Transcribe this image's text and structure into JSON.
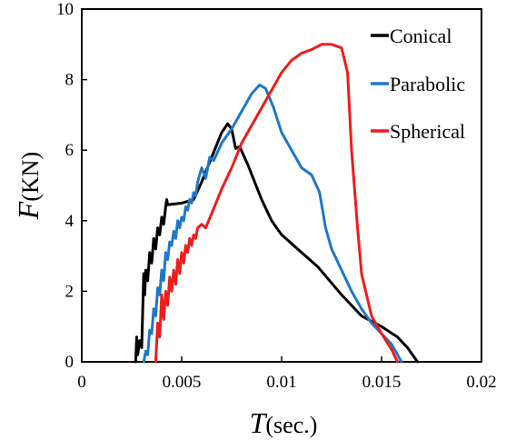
{
  "chart_data": {
    "type": "line",
    "xlabel": {
      "var": "T",
      "unit": "(sec.)"
    },
    "ylabel": {
      "var": "F",
      "unit": "(KN)"
    },
    "xlim": [
      0,
      0.02
    ],
    "ylim": [
      0,
      10
    ],
    "x_ticks": [
      "0",
      "0.005",
      "0.01",
      "0.015",
      "0.02"
    ],
    "y_ticks": [
      "0",
      "2",
      "4",
      "6",
      "8",
      "10"
    ],
    "x_tick_values": [
      0,
      0.005,
      0.01,
      0.015,
      0.02
    ],
    "y_tick_values": [
      0,
      2,
      4,
      6,
      8,
      10
    ],
    "grid": false,
    "legend_position": "top-right",
    "series": [
      {
        "name": "Conical",
        "color": "#000000",
        "points": [
          [
            0.0027,
            0.0
          ],
          [
            0.00275,
            0.7
          ],
          [
            0.0028,
            0.2
          ],
          [
            0.0029,
            0.6
          ],
          [
            0.003,
            0.4
          ],
          [
            0.0031,
            2.5
          ],
          [
            0.00315,
            1.9
          ],
          [
            0.0032,
            2.6
          ],
          [
            0.0033,
            2.3
          ],
          [
            0.0034,
            3.1
          ],
          [
            0.0035,
            2.8
          ],
          [
            0.0036,
            3.5
          ],
          [
            0.0037,
            3.2
          ],
          [
            0.0038,
            3.8
          ],
          [
            0.0039,
            3.6
          ],
          [
            0.004,
            4.1
          ],
          [
            0.0041,
            3.9
          ],
          [
            0.0042,
            4.4
          ],
          [
            0.00425,
            4.6
          ],
          [
            0.0043,
            4.45
          ],
          [
            0.005,
            4.5
          ],
          [
            0.0056,
            4.6
          ],
          [
            0.006,
            5.1
          ],
          [
            0.0065,
            5.8
          ],
          [
            0.007,
            6.5
          ],
          [
            0.0073,
            6.75
          ],
          [
            0.0075,
            6.6
          ],
          [
            0.0077,
            6.05
          ],
          [
            0.0079,
            6.1
          ],
          [
            0.0083,
            5.6
          ],
          [
            0.009,
            4.6
          ],
          [
            0.0095,
            4.0
          ],
          [
            0.01,
            3.6
          ],
          [
            0.011,
            3.1
          ],
          [
            0.0118,
            2.7
          ],
          [
            0.013,
            1.9
          ],
          [
            0.0135,
            1.6
          ],
          [
            0.014,
            1.3
          ],
          [
            0.015,
            1.0
          ],
          [
            0.0158,
            0.7
          ],
          [
            0.0163,
            0.4
          ],
          [
            0.0168,
            0.0
          ]
        ]
      },
      {
        "name": "Parabolic",
        "color": "#1f77c9",
        "points": [
          [
            0.0031,
            0.0
          ],
          [
            0.0032,
            0.3
          ],
          [
            0.0033,
            0.2
          ],
          [
            0.0034,
            0.9
          ],
          [
            0.0035,
            0.8
          ],
          [
            0.0036,
            1.5
          ],
          [
            0.0037,
            1.3
          ],
          [
            0.0038,
            2.1
          ],
          [
            0.0039,
            1.9
          ],
          [
            0.004,
            2.6
          ],
          [
            0.0041,
            2.3
          ],
          [
            0.0042,
            3.1
          ],
          [
            0.0043,
            2.9
          ],
          [
            0.0044,
            3.4
          ],
          [
            0.0045,
            3.3
          ],
          [
            0.0046,
            3.7
          ],
          [
            0.0047,
            3.5
          ],
          [
            0.0048,
            4.0
          ],
          [
            0.0049,
            3.8
          ],
          [
            0.005,
            4.1
          ],
          [
            0.0051,
            4.0
          ],
          [
            0.0052,
            4.4
          ],
          [
            0.0053,
            4.3
          ],
          [
            0.0054,
            4.6
          ],
          [
            0.0055,
            4.5
          ],
          [
            0.0056,
            4.8
          ],
          [
            0.0057,
            4.7
          ],
          [
            0.0058,
            5.1
          ],
          [
            0.006,
            5.5
          ],
          [
            0.0062,
            5.2
          ],
          [
            0.0064,
            5.8
          ],
          [
            0.0066,
            5.7
          ],
          [
            0.007,
            6.2
          ],
          [
            0.0075,
            6.6
          ],
          [
            0.008,
            7.1
          ],
          [
            0.0085,
            7.6
          ],
          [
            0.0089,
            7.85
          ],
          [
            0.0092,
            7.75
          ],
          [
            0.0096,
            7.2
          ],
          [
            0.01,
            6.5
          ],
          [
            0.0105,
            6.0
          ],
          [
            0.011,
            5.5
          ],
          [
            0.0115,
            5.3
          ],
          [
            0.0119,
            4.8
          ],
          [
            0.0122,
            3.8
          ],
          [
            0.0125,
            3.2
          ],
          [
            0.013,
            2.6
          ],
          [
            0.0135,
            2.0
          ],
          [
            0.014,
            1.5
          ],
          [
            0.0145,
            1.1
          ],
          [
            0.015,
            0.8
          ],
          [
            0.0155,
            0.5
          ],
          [
            0.016,
            0.0
          ]
        ]
      },
      {
        "name": "Spherical",
        "color": "#ee1c1c",
        "points": [
          [
            0.0037,
            0.0
          ],
          [
            0.0038,
            1.1
          ],
          [
            0.0039,
            0.7
          ],
          [
            0.004,
            1.9
          ],
          [
            0.0041,
            1.2
          ],
          [
            0.0042,
            2.0
          ],
          [
            0.0043,
            1.6
          ],
          [
            0.0044,
            2.4
          ],
          [
            0.0045,
            2.0
          ],
          [
            0.0046,
            2.6
          ],
          [
            0.0047,
            2.2
          ],
          [
            0.0048,
            2.9
          ],
          [
            0.0049,
            2.5
          ],
          [
            0.005,
            3.1
          ],
          [
            0.0051,
            2.8
          ],
          [
            0.0052,
            3.3
          ],
          [
            0.0053,
            3.1
          ],
          [
            0.0054,
            3.5
          ],
          [
            0.0055,
            3.3
          ],
          [
            0.0056,
            3.6
          ],
          [
            0.0057,
            3.5
          ],
          [
            0.0058,
            3.8
          ],
          [
            0.006,
            3.9
          ],
          [
            0.0062,
            3.8
          ],
          [
            0.0065,
            4.2
          ],
          [
            0.007,
            4.9
          ],
          [
            0.0075,
            5.5
          ],
          [
            0.008,
            6.2
          ],
          [
            0.0085,
            6.7
          ],
          [
            0.009,
            7.2
          ],
          [
            0.0095,
            7.7
          ],
          [
            0.01,
            8.2
          ],
          [
            0.0105,
            8.55
          ],
          [
            0.011,
            8.75
          ],
          [
            0.0115,
            8.85
          ],
          [
            0.012,
            9.0
          ],
          [
            0.0125,
            9.0
          ],
          [
            0.013,
            8.9
          ],
          [
            0.0133,
            8.2
          ],
          [
            0.0135,
            6.0
          ],
          [
            0.0138,
            3.8
          ],
          [
            0.014,
            2.5
          ],
          [
            0.0145,
            1.3
          ],
          [
            0.015,
            0.8
          ],
          [
            0.0155,
            0.35
          ],
          [
            0.0158,
            0.0
          ]
        ]
      }
    ]
  }
}
